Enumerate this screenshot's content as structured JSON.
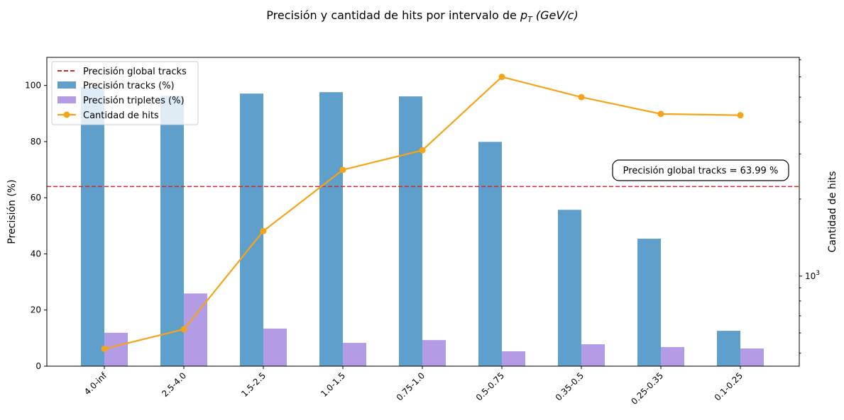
{
  "chart_data": {
    "type": "bar",
    "title": {
      "prefix": "Precisión y cantidad de hits por intervalo de ",
      "symbol": "p",
      "subscript": "T",
      "units": "(GeV/c)"
    },
    "categories": [
      "4.0-inf",
      "2.5-4.0",
      "1.5-2.5",
      "1.0-1.5",
      "0.75-1.0",
      "0.5-0.75",
      "0.35-0.5",
      "0.25-0.35",
      "0.1-0.25"
    ],
    "series": [
      {
        "name": "Precisión tracks (%)",
        "axis": "left",
        "kind": "bar",
        "color": "#5f9fcb",
        "values": [
          99.5,
          96.3,
          97.1,
          97.6,
          96.1,
          79.9,
          55.7,
          45.4,
          12.6
        ]
      },
      {
        "name": "Precisión tripletes (%)",
        "axis": "left",
        "kind": "bar",
        "color": "#b39be5",
        "values": [
          11.9,
          25.9,
          13.4,
          8.3,
          9.3,
          5.3,
          7.8,
          6.8,
          6.3
        ]
      },
      {
        "name": "Cantidad de hits",
        "axis": "right",
        "kind": "line",
        "color": "#f6a318",
        "values": [
          520,
          620,
          1500,
          2600,
          3100,
          6000,
          5000,
          4300,
          4250
        ]
      }
    ],
    "reference_line": {
      "name": "Precisión global tracks",
      "value": 63.99,
      "color": "#d62728",
      "annotation": "Precisión global tracks = 63.99 %"
    },
    "ylabel_left": "Precisión (%)",
    "ylabel_right": "Cantidad de hits",
    "ylim_left": [
      0,
      110
    ],
    "yticks_left": [
      "0",
      "20",
      "40",
      "60",
      "80",
      "100"
    ],
    "yscale_right": "log",
    "ylim_right": [
      445,
      7150
    ],
    "ytick_right": {
      "base": "10",
      "exponent": "3",
      "value": 1000
    },
    "legend_placement": "upper-left",
    "grid": false
  }
}
